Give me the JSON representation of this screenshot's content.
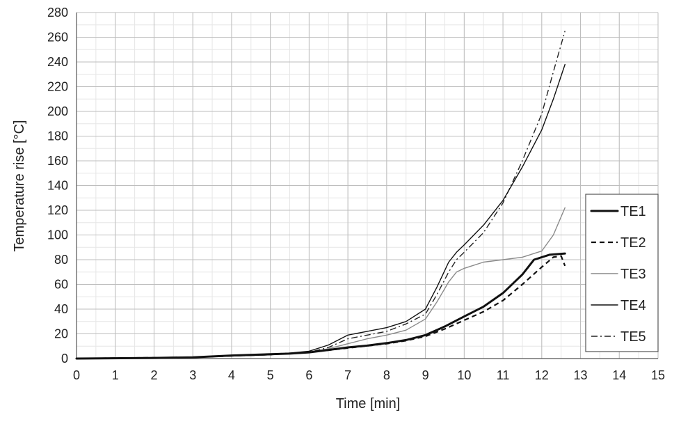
{
  "chart_data": {
    "type": "line",
    "xlabel": "Time [min]",
    "ylabel": "Temperature rise [°C]",
    "xlim": [
      0,
      15
    ],
    "ylim": [
      0,
      280
    ],
    "xticks": [
      0,
      1,
      2,
      3,
      4,
      5,
      6,
      7,
      8,
      9,
      10,
      11,
      12,
      13,
      14,
      15
    ],
    "yticks": [
      0,
      20,
      40,
      60,
      80,
      100,
      120,
      140,
      160,
      180,
      200,
      220,
      240,
      260,
      280
    ],
    "minor_x_step": 0.5,
    "minor_y_step": 10,
    "grid": true,
    "legend_position": "right",
    "series": [
      {
        "name": "TE1",
        "style": "solid-thick",
        "color": "#111111",
        "x": [
          0,
          2,
          3,
          4,
          5,
          5.5,
          6,
          6.5,
          7,
          7.5,
          8,
          8.5,
          9,
          9.5,
          10,
          10.5,
          11,
          11.5,
          11.8,
          12.2,
          12.6
        ],
        "y": [
          0,
          0.5,
          1,
          2.5,
          3.5,
          4,
          5,
          7,
          9,
          10.5,
          12.5,
          15,
          19,
          26,
          34,
          42,
          53,
          68,
          80,
          84,
          85
        ]
      },
      {
        "name": "TE2",
        "style": "dashed",
        "color": "#111111",
        "x": [
          0,
          3,
          5,
          6,
          7,
          8,
          8.5,
          9,
          9.5,
          10,
          10.5,
          11,
          11.5,
          12,
          12.3,
          12.5,
          12.6
        ],
        "y": [
          0,
          1,
          3.5,
          5,
          8.5,
          12,
          14.5,
          18,
          24,
          31,
          38,
          47,
          60,
          74,
          82,
          83,
          75
        ]
      },
      {
        "name": "TE3",
        "style": "solid-thin",
        "color": "#8a8a8a",
        "x": [
          0,
          3,
          5,
          6,
          6.5,
          7,
          7.5,
          8,
          8.5,
          9,
          9.3,
          9.6,
          9.8,
          10,
          10.5,
          11,
          11.5,
          12,
          12.3,
          12.6
        ],
        "y": [
          0,
          1,
          3,
          5,
          8,
          12,
          16,
          19,
          23,
          32,
          46,
          62,
          70,
          73,
          78,
          80,
          82,
          87,
          100,
          122
        ]
      },
      {
        "name": "TE4",
        "style": "solid-thin",
        "color": "#111111",
        "x": [
          0,
          3,
          5,
          6,
          6.5,
          7,
          7.5,
          8,
          8.5,
          9,
          9.3,
          9.6,
          9.8,
          10,
          10.5,
          11,
          11.5,
          12,
          12.3,
          12.6
        ],
        "y": [
          0,
          1,
          3,
          6,
          11,
          19,
          22,
          25,
          30,
          40,
          58,
          78,
          86,
          92,
          108,
          128,
          155,
          185,
          210,
          238
        ]
      },
      {
        "name": "TE5",
        "style": "dash-dot",
        "color": "#222222",
        "x": [
          0,
          3,
          5,
          6,
          6.5,
          7,
          7.5,
          8,
          8.5,
          9,
          9.3,
          9.6,
          9.8,
          10,
          10.5,
          11,
          11.5,
          12,
          12.3,
          12.6
        ],
        "y": [
          0,
          1,
          3,
          5,
          9,
          16,
          19,
          22,
          28,
          36,
          52,
          70,
          80,
          86,
          102,
          126,
          160,
          198,
          232,
          265
        ]
      }
    ]
  }
}
